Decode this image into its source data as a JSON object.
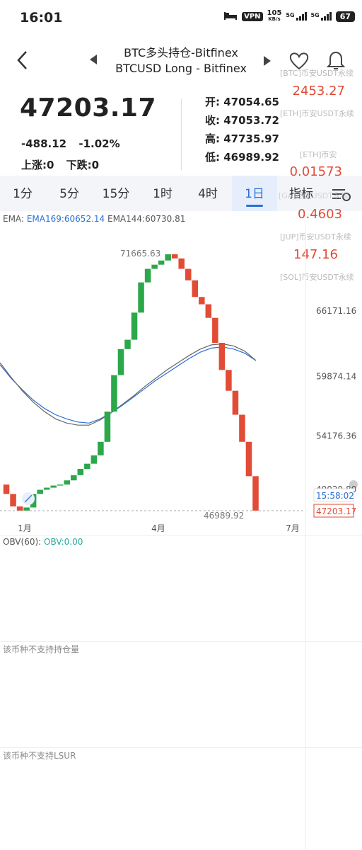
{
  "status": {
    "time": "16:01",
    "vpn": "VPN",
    "speed_top": "105",
    "speed_bot": "KB/s",
    "net1": "5G",
    "net2": "5G",
    "battery": "67"
  },
  "header": {
    "title_line1": "BTC多头持仓-Bitfinex",
    "title_line2": "BTCUSD Long - Bitfinex"
  },
  "quote": {
    "price": "47203.17",
    "change": "-488.12",
    "change_pct": "-1.02%",
    "up": "上涨:0",
    "down": "下跌:0",
    "open_label": "开:",
    "open": "47054.65",
    "close_label": "收:",
    "close": "47053.72",
    "high_label": "高:",
    "high": "47735.97",
    "low_label": "低:",
    "low": "46989.92"
  },
  "tickers": [
    {
      "label": "[BTC]币安USDT永续",
      "value": "2453.27"
    },
    {
      "label": "[ETH]币安USDT永续",
      "value": ""
    },
    {
      "label": "[ETH]币安",
      "value": "0.01573"
    },
    {
      "label": "[GA]币安USDT永续",
      "value": "0.4603"
    },
    {
      "label": "[JUP]币安USDT永续",
      "value": "147.16"
    },
    {
      "label": "[SOL]币安USDT永续",
      "value": ""
    }
  ],
  "tabs": [
    {
      "label": "1分"
    },
    {
      "label": "5分"
    },
    {
      "label": "15分"
    },
    {
      "label": "1时"
    },
    {
      "label": "4时"
    },
    {
      "label": "1日"
    },
    {
      "label": "指标"
    }
  ],
  "indicators": {
    "ema_prefix": "EMA:",
    "ema169": "EMA169:60652.14",
    "ema144": "EMA144:60730.81",
    "obv_prefix": "OBV(60):",
    "obv_val": "OBV:0.00"
  },
  "sections": {
    "oi": "该币种不支持持仓量",
    "lsur": "该币种不支持LSUR"
  },
  "colors": {
    "up": "#2aa84a",
    "down": "#e24b35",
    "ema169": "#2a6fd6",
    "ema144": "#666666"
  },
  "chart_data": {
    "type": "line",
    "y_ticks": [
      "66171.16",
      "59874.14",
      "54176.36",
      "49020.80"
    ],
    "x_ticks": [
      "1月",
      "4月",
      "7月"
    ],
    "max_label": "71665.63",
    "min_label": "46989.92",
    "last_price": "47203.17",
    "countdown": "15:58:02",
    "series": [
      {
        "name": "BTC多头持仓",
        "values": [
          49500,
          48600,
          47400,
          47000,
          47300,
          48600,
          49000,
          49200,
          49400,
          49500,
          49900,
          50400,
          51000,
          51500,
          52300,
          53600,
          56500,
          60000,
          62500,
          63400,
          66000,
          68900,
          70200,
          70600,
          71000,
          71600,
          71200,
          70200,
          69100,
          67500,
          66800,
          65500,
          63100,
          60500,
          58500,
          56200,
          53600,
          50300,
          47000
        ]
      },
      {
        "name": "EMA169:60652.14",
        "values": [
          61000,
          59700,
          58600,
          57600,
          56800,
          56200,
          55800,
          55500,
          55400,
          55800,
          56400,
          57100,
          57900,
          58700,
          59500,
          60200,
          60900,
          61600,
          62200,
          62600,
          62700,
          62500,
          62100,
          61400
        ]
      },
      {
        "name": "EMA144:60730.81",
        "values": [
          61200,
          59800,
          58500,
          57400,
          56500,
          55800,
          55400,
          55200,
          55200,
          55700,
          56400,
          57200,
          58000,
          58900,
          59700,
          60500,
          61200,
          61900,
          62500,
          62900,
          63000,
          62800,
          62300,
          61400
        ]
      }
    ]
  }
}
